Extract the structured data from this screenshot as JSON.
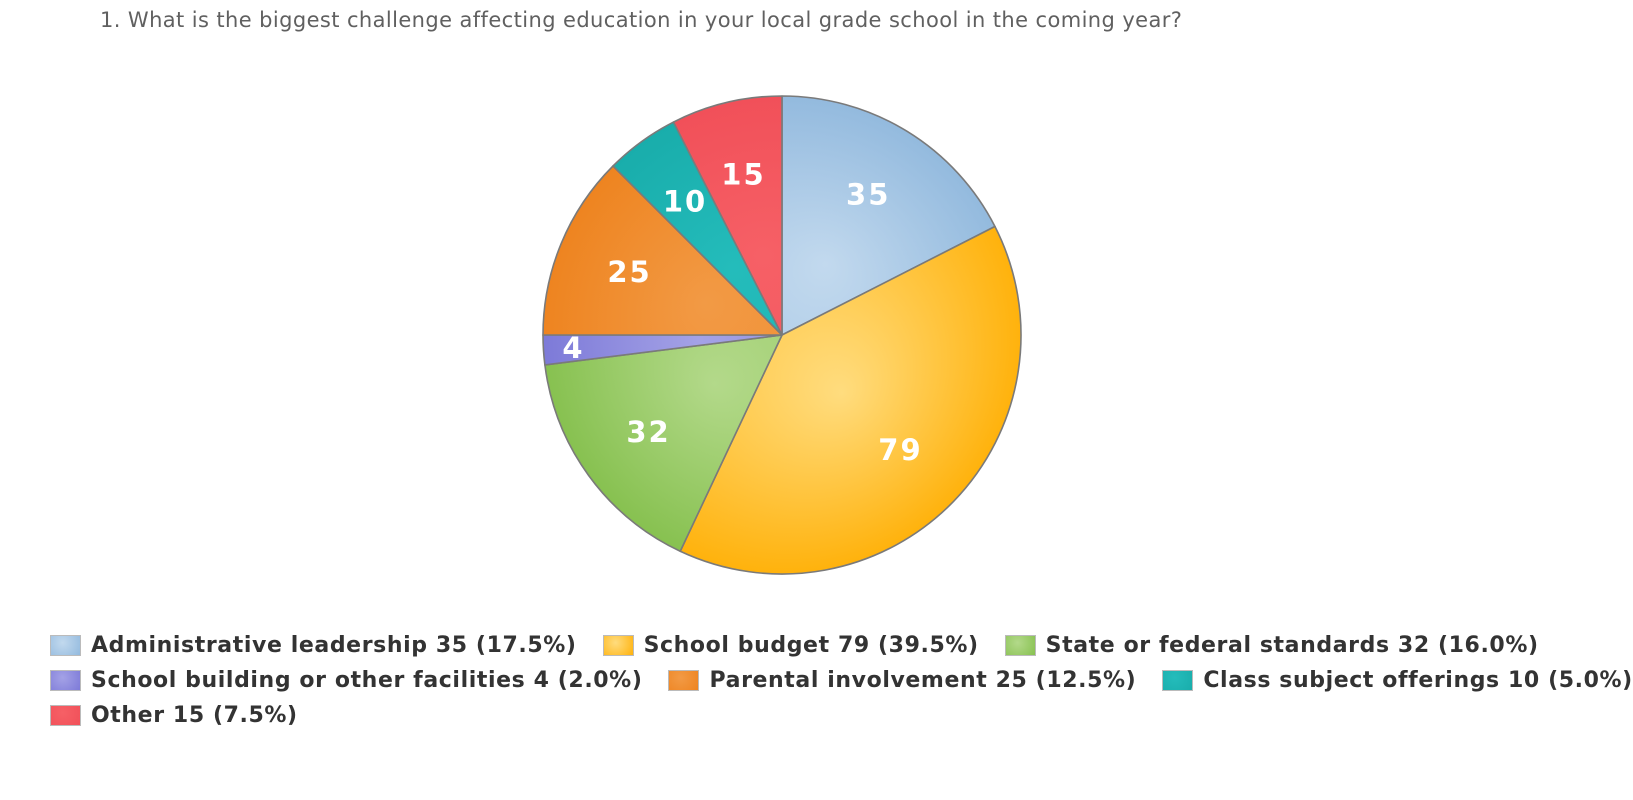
{
  "chart_data": {
    "type": "pie",
    "title": "1. What is the biggest challenge affecting education in your local grade school in the coming year?",
    "legend_position": "bottom",
    "slices": [
      {
        "label": "Administrative leadership",
        "value": 35,
        "percent": "17.5%",
        "legend_text": "Administrative leadership 35 (17.5%)",
        "color": "#93bade",
        "color_light": "#c2d9ee"
      },
      {
        "label": "School budget",
        "value": 79,
        "percent": "39.5%",
        "legend_text": "School budget 79 (39.5%)",
        "color": "#ffb20c",
        "color_light": "#ffdc7e"
      },
      {
        "label": "State or federal standards",
        "value": 32,
        "percent": "16.0%",
        "legend_text": "State or federal standards 32 (16.0%)",
        "color": "#87c150",
        "color_light": "#b3d98a"
      },
      {
        "label": "School building or other facilities",
        "value": 4,
        "percent": "2.0%",
        "legend_text": "School building or other facilities 4 (2.0%)",
        "color": "#7d7ad8",
        "color_light": "#a4a2e6"
      },
      {
        "label": "Parental involvement",
        "value": 25,
        "percent": "12.5%",
        "legend_text": "Parental involvement 25 (12.5%)",
        "color": "#ee8420",
        "color_light": "#f29a45"
      },
      {
        "label": "Class subject offerings",
        "value": 10,
        "percent": "5.0%",
        "legend_text": "Class subject offerings 10 (5.0%)",
        "color": "#19adab",
        "color_light": "#24bcbb"
      },
      {
        "label": "Other",
        "value": 15,
        "percent": "7.5%",
        "legend_text": "Other 15 (7.5%)",
        "color": "#f15059",
        "color_light": "#f66066"
      }
    ]
  }
}
